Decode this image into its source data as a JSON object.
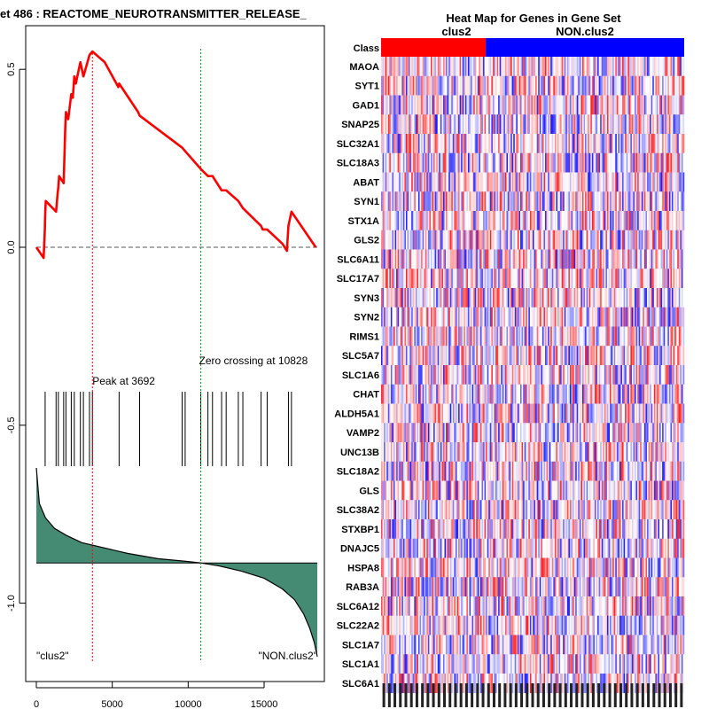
{
  "chart_data": [
    {
      "type": "line",
      "title": "et  486 : REACTOME_NEUROTRANSMITTER_RELEASE_",
      "xlabel": "",
      "ylabel": "",
      "xlim": [
        0,
        18500
      ],
      "ylim": [
        -1.2,
        0.6
      ],
      "x_ticks": [
        0,
        5000,
        10000,
        15000
      ],
      "x_tick_labels": [
        "0",
        "5000",
        "10000",
        "15000"
      ],
      "y_ticks": [
        0.5,
        0.0,
        -0.5,
        -1.0
      ],
      "y_tick_labels": [
        "0.5",
        "0.0",
        "-0.5",
        "-1.0"
      ],
      "series": [
        {
          "name": "running enrichment score",
          "color": "#ff0000",
          "x": [
            0,
            480,
            560,
            580,
            620,
            1300,
            1400,
            1450,
            1500,
            1800,
            1900,
            1950,
            2100,
            2300,
            2400,
            2500,
            2600,
            2900,
            3000,
            3100,
            3500,
            3692,
            4500,
            5400,
            5450,
            6700,
            6800,
            9600,
            9800,
            10828,
            11300,
            11600,
            12200,
            12500,
            13300,
            13600,
            14800,
            14900,
            15200,
            16200,
            16500,
            16600,
            16800,
            18400
          ],
          "y": [
            0.0,
            -0.03,
            0.05,
            0.09,
            0.13,
            0.1,
            0.15,
            0.17,
            0.2,
            0.18,
            0.33,
            0.38,
            0.36,
            0.43,
            0.42,
            0.48,
            0.46,
            0.52,
            0.5,
            0.48,
            0.54,
            0.55,
            0.52,
            0.45,
            0.46,
            0.38,
            0.37,
            0.28,
            0.27,
            0.22,
            0.2,
            0.2,
            0.16,
            0.16,
            0.13,
            0.11,
            0.06,
            0.05,
            0.05,
            0.01,
            -0.01,
            0.06,
            0.1,
            0.0
          ]
        }
      ],
      "zero_line": 0.0,
      "hits": [
        580,
        1300,
        1450,
        1800,
        1950,
        2300,
        2500,
        2900,
        3100,
        3500,
        3692,
        5450,
        6800,
        9600,
        9800,
        10828,
        11300,
        11600,
        12200,
        12500,
        13300,
        13600,
        14800,
        15200,
        16600,
        16800
      ],
      "ranked_metric": {
        "x": [
          0,
          200,
          600,
          1200,
          2000,
          3000,
          4500,
          6000,
          8000,
          10000,
          10828,
          12000,
          13500,
          15000,
          16200,
          17000,
          17600,
          18000,
          18300,
          18500
        ],
        "y": [
          -0.62,
          -0.72,
          -0.76,
          -0.79,
          -0.81,
          -0.83,
          -0.845,
          -0.86,
          -0.875,
          -0.883,
          -0.887,
          -0.895,
          -0.91,
          -0.93,
          -0.96,
          -0.99,
          -1.03,
          -1.07,
          -1.11,
          -1.15
        ],
        "baseline": -0.887,
        "fill_color": "#458b74"
      },
      "annotations": [
        {
          "label": "Peak at 3692",
          "x": 3692,
          "color": "#ff0000"
        },
        {
          "label": "Zero crossing at 10828",
          "x": 10828,
          "color": "#00aa00"
        }
      ],
      "corner_labels": {
        "left": "\"clus2\"",
        "right": "\"NON.clus2\""
      }
    },
    {
      "type": "heatmap",
      "title": "Heat Map for Genes in Gene Set",
      "class_label": "Class",
      "classes": [
        {
          "name": "clus2",
          "color": "#ff0000",
          "n": 19
        },
        {
          "name": "NON.clus2",
          "color": "#0000ff",
          "n": 36
        }
      ],
      "genes": [
        "MAOA",
        "SYT1",
        "GAD1",
        "SNAP25",
        "SLC32A1",
        "SLC18A3",
        "ABAT",
        "SYN1",
        "STX1A",
        "GLS2",
        "SLC6A11",
        "SLC17A7",
        "SYN3",
        "SYN2",
        "RIMS1",
        "SLC5A7",
        "SLC1A6",
        "CHAT",
        "ALDH5A1",
        "VAMP2",
        "UNC13B",
        "SLC18A2",
        "GLS",
        "SLC38A2",
        "STXBP1",
        "DNAJC5",
        "HSPA8",
        "RAB3A",
        "SLC6A12",
        "SLC22A2",
        "SLC1A7",
        "SLC1A1",
        "SLC6A1"
      ],
      "n_columns": 55,
      "column_label_count": 55,
      "low_color": "#0000ff",
      "mid_color": "#ffffff",
      "high_color": "#ff0000"
    }
  ]
}
